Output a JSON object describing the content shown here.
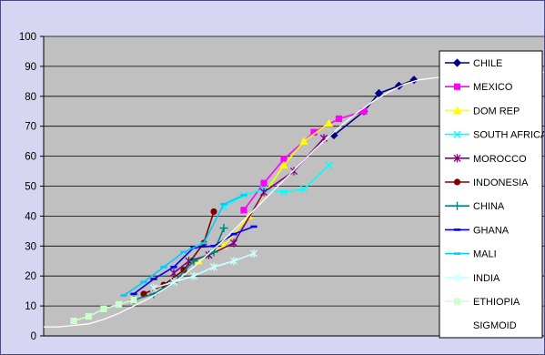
{
  "chart_data": {
    "type": "line",
    "title": "",
    "xlabel": "",
    "ylabel": "",
    "ylim": [
      0,
      100
    ],
    "yticks": [
      0,
      10,
      20,
      30,
      40,
      50,
      60,
      70,
      80,
      90,
      100
    ],
    "ytick_labels": [
      "0",
      "10",
      "20",
      "30",
      "40",
      "50",
      "60",
      "70",
      "80",
      "90",
      "100"
    ],
    "xlim": [
      0,
      100
    ],
    "grid": "horizontal",
    "legend_position": "right",
    "plot_background": "#c0c0c0",
    "series": [
      {
        "name": "CHILE",
        "color": "#000080",
        "marker": "diamond",
        "points": [
          [
            58,
            67
          ],
          [
            64,
            75
          ],
          [
            67,
            81
          ],
          [
            71,
            83.5
          ],
          [
            74,
            85.5
          ]
        ]
      },
      {
        "name": "MEXICO",
        "color": "#ff00ff",
        "marker": "square",
        "points": [
          [
            40,
            42
          ],
          [
            44,
            51
          ],
          [
            48,
            59
          ],
          [
            54,
            68
          ],
          [
            59,
            72.5
          ],
          [
            64,
            75
          ]
        ]
      },
      {
        "name": "DOM REP",
        "color": "#ffff00",
        "marker": "triangle",
        "points": [
          [
            31,
            25
          ],
          [
            36,
            30
          ],
          [
            41,
            40
          ],
          [
            48,
            57
          ],
          [
            52,
            65
          ],
          [
            57,
            71
          ]
        ]
      },
      {
        "name": "SOUTH AFRICA",
        "color": "#00ffff",
        "marker": "x",
        "points": [
          [
            36,
            43
          ],
          [
            40,
            47
          ],
          [
            44,
            49
          ],
          [
            48,
            48
          ],
          [
            52,
            49
          ],
          [
            57,
            57
          ]
        ]
      },
      {
        "name": "MOROCCO",
        "color": "#800080",
        "marker": "star",
        "points": [
          [
            26,
            21
          ],
          [
            29,
            25
          ],
          [
            33,
            27
          ],
          [
            38,
            31
          ],
          [
            44,
            48
          ],
          [
            50,
            55
          ],
          [
            56,
            66
          ]
        ]
      },
      {
        "name": "INDONESIA",
        "color": "#800000",
        "marker": "circle",
        "points": [
          [
            20,
            14
          ],
          [
            24,
            17
          ],
          [
            28,
            22
          ],
          [
            32,
            31
          ],
          [
            34,
            41.5
          ]
        ]
      },
      {
        "name": "CHINA",
        "color": "#008080",
        "marker": "plus",
        "points": [
          [
            18,
            12
          ],
          [
            22,
            14
          ],
          [
            26,
            18
          ],
          [
            30,
            25
          ],
          [
            34,
            28
          ],
          [
            36,
            36
          ]
        ]
      },
      {
        "name": "GHANA",
        "color": "#0000ff",
        "marker": "dash",
        "points": [
          [
            18,
            14
          ],
          [
            22,
            19
          ],
          [
            26,
            23
          ],
          [
            30,
            29.5
          ],
          [
            34,
            30
          ],
          [
            38,
            34
          ],
          [
            42,
            36.5
          ]
        ]
      },
      {
        "name": "MALI",
        "color": "#00ccff",
        "marker": "dash",
        "points": [
          [
            16,
            13.5
          ],
          [
            20,
            18
          ],
          [
            24,
            23
          ],
          [
            28,
            28
          ],
          [
            32,
            31
          ],
          [
            36,
            44
          ],
          [
            40,
            47
          ]
        ]
      },
      {
        "name": "INDIA",
        "color": "#ccffff",
        "marker": "star",
        "points": [
          [
            22,
            16
          ],
          [
            26,
            18
          ],
          [
            30,
            20
          ],
          [
            34,
            23
          ],
          [
            38,
            25
          ],
          [
            42,
            27.5
          ]
        ]
      },
      {
        "name": "ETHIOPIA",
        "color": "#ccffcc",
        "marker": "square",
        "points": [
          [
            6,
            5
          ],
          [
            9,
            6.5
          ],
          [
            12,
            9
          ],
          [
            15,
            10.5
          ],
          [
            18,
            12
          ]
        ]
      },
      {
        "name": "SIGMOID",
        "color": "#ffffff",
        "marker": "none",
        "points": [
          [
            0,
            3
          ],
          [
            3,
            3
          ],
          [
            6,
            3.5
          ],
          [
            9,
            4
          ],
          [
            12,
            5.5
          ],
          [
            15,
            7.5
          ],
          [
            18,
            10
          ],
          [
            21,
            12.5
          ],
          [
            24,
            15.5
          ],
          [
            27,
            19
          ],
          [
            30,
            23
          ],
          [
            33,
            27.5
          ],
          [
            36,
            32
          ],
          [
            39,
            37
          ],
          [
            42,
            42
          ],
          [
            45,
            47
          ],
          [
            48,
            52
          ],
          [
            51,
            57
          ],
          [
            54,
            62
          ],
          [
            57,
            66.5
          ],
          [
            60,
            71
          ],
          [
            63,
            75
          ],
          [
            66,
            78.5
          ],
          [
            69,
            81.5
          ],
          [
            72,
            84
          ],
          [
            75,
            85.5
          ],
          [
            80,
            86.5
          ],
          [
            88,
            87.5
          ],
          [
            100,
            88
          ]
        ]
      }
    ]
  }
}
